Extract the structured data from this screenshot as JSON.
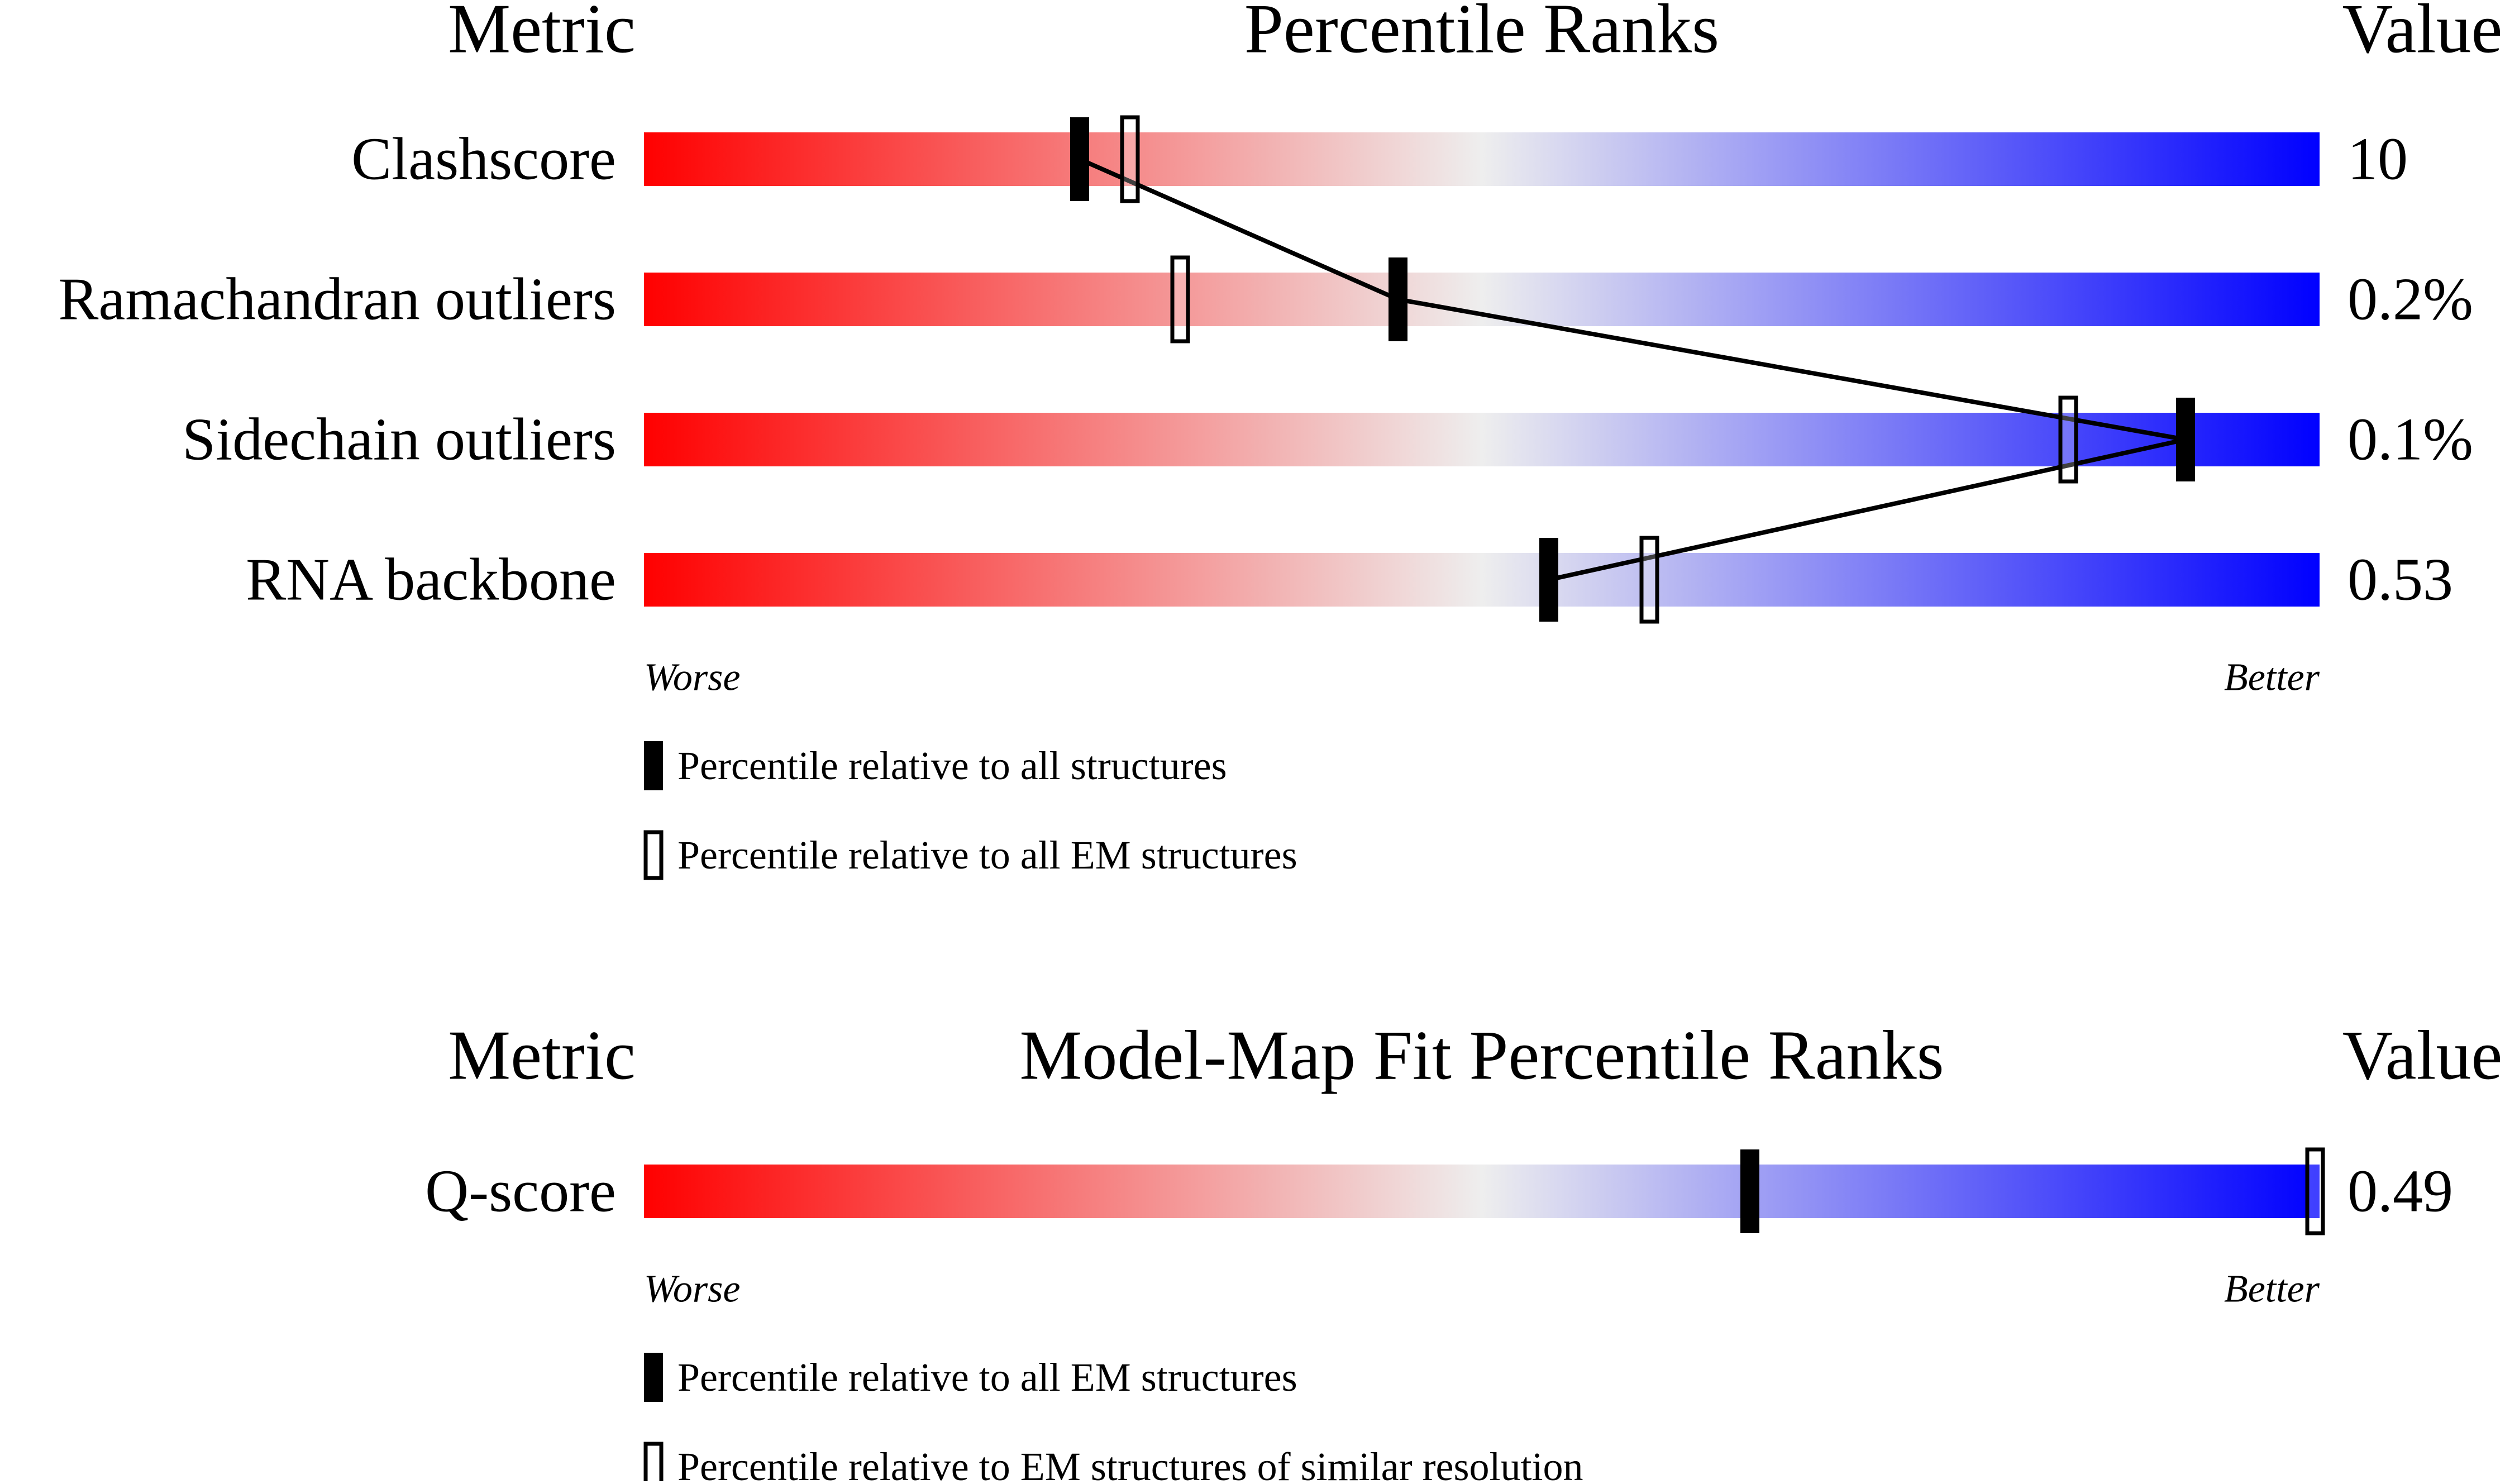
{
  "chart_data": [
    {
      "type": "percentile-bar",
      "headers": {
        "metric": "Metric",
        "title": "Percentile Ranks",
        "value": "Value"
      },
      "scale": {
        "min": 0,
        "max": 100
      },
      "gradient_colors": [
        "#ff0000",
        "#eeeeee",
        "#0000ff"
      ],
      "rows": [
        {
          "metric": "Clashscore",
          "value": "10",
          "percentile_all": 26,
          "percentile_em": 29
        },
        {
          "metric": "Ramachandran outliers",
          "value": "0.2%",
          "percentile_all": 45,
          "percentile_em": 32
        },
        {
          "metric": "Sidechain outliers",
          "value": "0.1%",
          "percentile_all": 92,
          "percentile_em": 85
        },
        {
          "metric": "RNA backbone",
          "value": "0.53",
          "percentile_all": 54,
          "percentile_em": 60
        }
      ],
      "connect_filled_markers": true,
      "axis_left_label": "Worse",
      "axis_right_label": "Better",
      "legend": [
        {
          "marker": "filled",
          "label": "Percentile relative to all structures"
        },
        {
          "marker": "open",
          "label": "Percentile relative to all EM structures"
        }
      ]
    },
    {
      "type": "percentile-bar",
      "headers": {
        "metric": "Metric",
        "title": "Model-Map Fit Percentile Ranks",
        "value": "Value"
      },
      "scale": {
        "min": 0,
        "max": 100
      },
      "gradient_colors": [
        "#ff0000",
        "#eeeeee",
        "#0000ff"
      ],
      "rows": [
        {
          "metric": "Q-score",
          "value": "0.49",
          "percentile_all": 66,
          "percentile_em": 100
        }
      ],
      "connect_filled_markers": false,
      "axis_left_label": "Worse",
      "axis_right_label": "Better",
      "legend": [
        {
          "marker": "filled",
          "label": "Percentile relative to all EM structures"
        },
        {
          "marker": "open",
          "label": "Percentile relative to EM structures of similar resolution"
        }
      ]
    }
  ]
}
